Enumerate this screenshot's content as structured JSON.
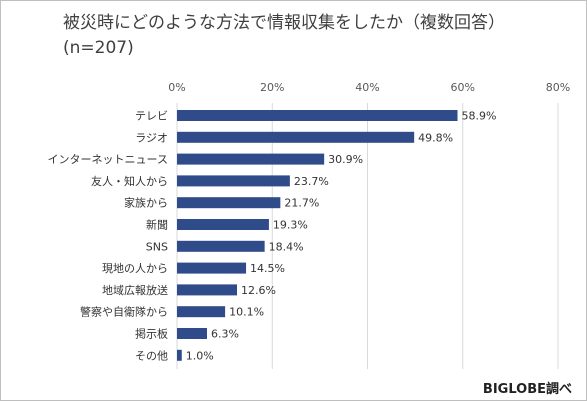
{
  "chart_data": {
    "type": "bar",
    "orientation": "horizontal",
    "title": "被災時にどのような方法で情報収集をしたか（複数回答）(n=207)",
    "categories": [
      "テレビ",
      "ラジオ",
      "インターネットニュース",
      "友人・知人から",
      "家族から",
      "新聞",
      "SNS",
      "現地の人から",
      "地域広報放送",
      "警察や自衛隊から",
      "掲示板",
      "その他"
    ],
    "values": [
      58.9,
      49.8,
      30.9,
      23.7,
      21.7,
      19.3,
      18.4,
      14.5,
      12.6,
      10.1,
      6.3,
      1.0
    ],
    "value_labels": [
      "58.9%",
      "49.8%",
      "30.9%",
      "23.7%",
      "21.7%",
      "19.3%",
      "18.4%",
      "14.5%",
      "12.6%",
      "10.1%",
      "6.3%",
      "1.0%"
    ],
    "xlim": [
      0,
      80
    ],
    "xticks": [
      0,
      20,
      40,
      60,
      80
    ],
    "xtick_labels": [
      "0%",
      "20%",
      "40%",
      "60%",
      "80%"
    ],
    "x_axis_position": "top",
    "grid": true,
    "bar_color": "#2f4b8a",
    "grid_color": "#d9d9d9"
  },
  "title_line1": "被災時にどのような方法で情報収集をしたか（複数回答）",
  "title_line2": "(n=207)",
  "source": "BIGLOBE調べ"
}
